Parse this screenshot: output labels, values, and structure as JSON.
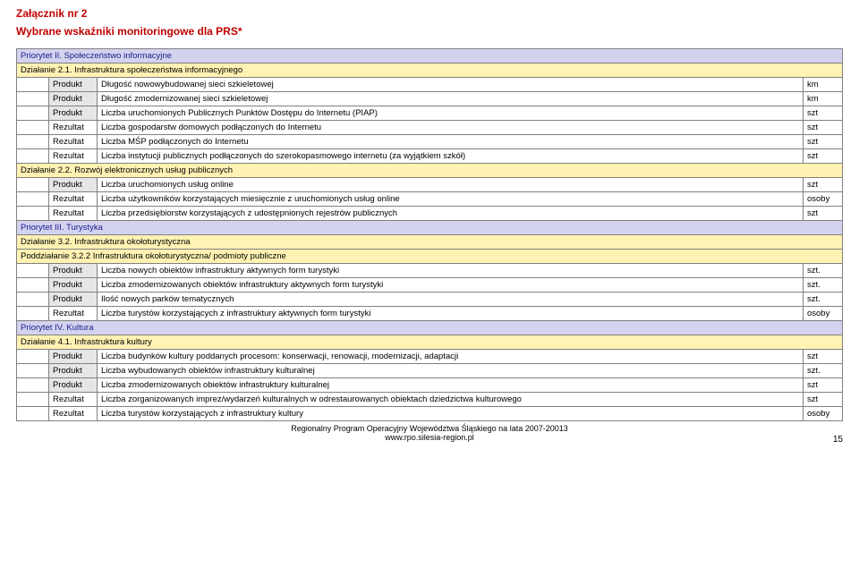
{
  "header": {
    "title": "Załącznik nr 2",
    "subtitle": "Wybrane wskaźniki monitoringowe dla PRS*"
  },
  "colors": {
    "header_text": "#c00000",
    "priority_bg": "#d3d3f0",
    "priority_text": "#1a1a8a",
    "action_bg": "#fff2b3",
    "product_bg": "#e6e6e6",
    "border": "#808080"
  },
  "rows": [
    {
      "kind": "priority",
      "label": "Priorytet II. Społeczeństwo informacyjne"
    },
    {
      "kind": "action",
      "label": "Działanie 2.1. Infrastruktura społeczeństwa informacyjnego"
    },
    {
      "kind": "item",
      "type": "Produkt",
      "desc": "Długość nowowybudowanej sieci szkieletowej",
      "unit": "km"
    },
    {
      "kind": "item",
      "type": "Produkt",
      "desc": "Długość zmodernizowanej sieci szkieletowej",
      "unit": "km"
    },
    {
      "kind": "item",
      "type": "Produkt",
      "desc": "Liczba uruchomionych Publicznych Punktów Dostępu do Internetu (PIAP)",
      "unit": "szt"
    },
    {
      "kind": "item",
      "type": "Rezultat",
      "desc": "Liczba gospodarstw domowych podłączonych do Internetu",
      "unit": "szt"
    },
    {
      "kind": "item",
      "type": "Rezultat",
      "desc": "Liczba MŚP podłączonych do Internetu",
      "unit": "szt"
    },
    {
      "kind": "item",
      "type": "Rezultat",
      "desc": "Liczba instytucji publicznych podłączonych do szerokopasmowego internetu (za wyjątkiem szkół)",
      "unit": "szt"
    },
    {
      "kind": "action",
      "label": "Działanie 2.2. Rozwój elektronicznych usług publicznych"
    },
    {
      "kind": "item",
      "type": "Produkt",
      "desc": "Liczba uruchomionych usług online",
      "unit": "szt"
    },
    {
      "kind": "item",
      "type": "Rezultat",
      "desc": "Liczba użytkowników korzystających miesięcznie z uruchomionych usług online",
      "unit": "osoby"
    },
    {
      "kind": "item",
      "type": "Rezultat",
      "desc": "Liczba przedsiębiorstw korzystających z udostępnionych rejestrów publicznych",
      "unit": "szt"
    },
    {
      "kind": "priority",
      "label": "Priorytet III. Turystyka"
    },
    {
      "kind": "action",
      "label": "Działanie 3.2. Infrastruktura okołoturystyczna"
    },
    {
      "kind": "subaction",
      "label": "Poddziałanie 3.2.2 Infrastruktura okołoturystyczna/ podmioty publiczne"
    },
    {
      "kind": "item",
      "type": "Produkt",
      "desc": "Liczba nowych obiektów infrastruktury aktywnych form turystyki",
      "unit": "szt."
    },
    {
      "kind": "item",
      "type": "Produkt",
      "desc": "Liczba zmodernizowanych obiektów infrastruktury aktywnych form turystyki",
      "unit": "szt."
    },
    {
      "kind": "item",
      "type": "Produkt",
      "desc": "Ilość nowych parków tematycznych",
      "unit": "szt."
    },
    {
      "kind": "item",
      "type": "Rezultat",
      "desc": "Liczba turystów korzystających z infrastruktury aktywnych form turystyki",
      "unit": "osoby"
    },
    {
      "kind": "priority",
      "label": "Priorytet IV. Kultura"
    },
    {
      "kind": "action",
      "label": "Działanie 4.1. Infrastruktura kultury"
    },
    {
      "kind": "item",
      "type": "Produkt",
      "desc": "Liczba budynków kultury poddanych procesom: konserwacji, renowacji, modernizacji, adaptacji",
      "unit": "szt"
    },
    {
      "kind": "item",
      "type": "Produkt",
      "desc": "Liczba wybudowanych obiektów infrastruktury kulturalnej",
      "unit": "szt."
    },
    {
      "kind": "item",
      "type": "Produkt",
      "desc": "Liczba zmodernizowanych obiektów infrastruktury kulturalnej",
      "unit": "szt"
    },
    {
      "kind": "item",
      "type": "Rezultat",
      "desc": "Liczba zorganizowanych imprez/wydarzeń kulturalnych w odrestaurowanych obiektach dziedzictwa kulturowego",
      "unit": "szt"
    },
    {
      "kind": "item",
      "type": "Rezultat",
      "desc": "Liczba turystów korzystających z infrastruktury kultury",
      "unit": "osoby"
    }
  ],
  "footer": {
    "line1": "Regionalny Program Operacyjny Województwa Śląskiego na lata 2007-20013",
    "line2": "www.rpo.silesia-region.pl",
    "page": "15"
  }
}
